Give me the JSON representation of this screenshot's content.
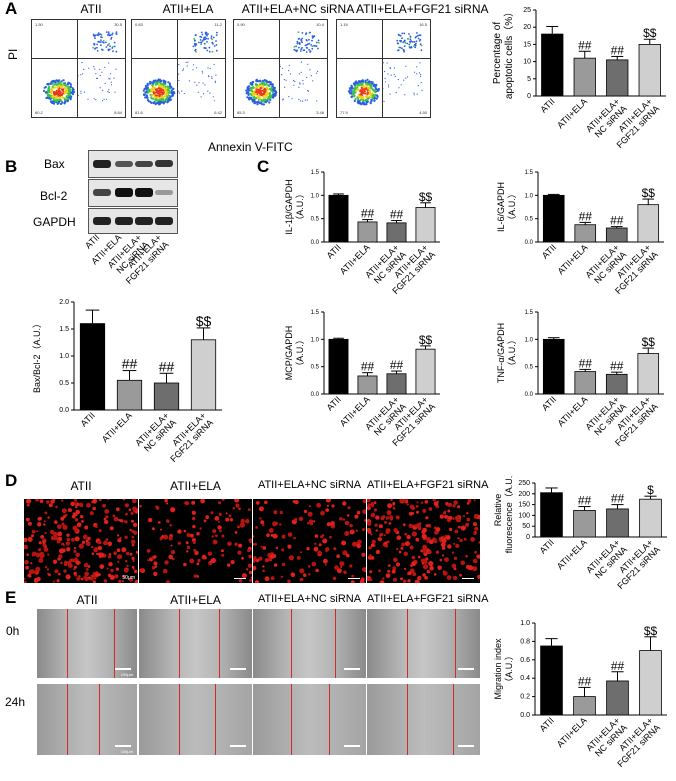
{
  "panels": {
    "a": "A",
    "b": "B",
    "c": "C",
    "d": "D",
    "e": "E"
  },
  "flow": {
    "titles": [
      "ATII",
      "ATII+ELA",
      "ATII+ELA+NC siRNA",
      "ATII+ELA+FGF21 siRNA"
    ],
    "y_axis": "PI",
    "x_axis": "Annexin V-FITC",
    "quadrants": [
      {
        "ul": "1.50",
        "ur": "30.5",
        "ll": "60.2",
        "lr": "8.84"
      },
      {
        "ul": "0.83",
        "ur": "11.2",
        "ll": "81.6",
        "lr": "6.42"
      },
      {
        "ul": "0.90",
        "ur": "10.4",
        "ll": "85.3",
        "lr": "3.46"
      },
      {
        "ul": "1.19",
        "ur": "16.5",
        "ll": "77.9",
        "lr": "4.50"
      }
    ]
  },
  "western": {
    "bands": [
      "Bax",
      "Bcl-2",
      "GAPDH"
    ]
  },
  "chart_data": [
    {
      "id": "apoptosis",
      "type": "bar",
      "categories": [
        "ATII",
        "ATII+ELA",
        "ATII+ELA+ NC siRNA",
        "ATII+ELA+ FGF21 siRNA"
      ],
      "values": [
        18,
        11,
        10.5,
        15
      ],
      "errors": [
        2.2,
        2,
        1,
        1.5
      ],
      "sig": [
        "",
        "##",
        "##",
        "$$"
      ],
      "ylabel": "Percentage of apoptotic cells（%）",
      "ylim": [
        0,
        25
      ],
      "ticks": [
        0,
        5,
        10,
        15,
        20,
        25
      ],
      "colors": [
        "#000000",
        "#9a9a9a",
        "#6e6e6e",
        "#cfcfcf"
      ]
    },
    {
      "id": "bax",
      "type": "bar",
      "categories": [
        "ATII",
        "ATII+ELA",
        "ATII+ELA+ NC siRNA",
        "ATII+ELA+ FGF21 siRNA"
      ],
      "values": [
        1.6,
        0.55,
        0.5,
        1.3
      ],
      "errors": [
        0.25,
        0.18,
        0.18,
        0.22
      ],
      "sig": [
        "",
        "##",
        "##",
        "$$"
      ],
      "ylabel": "Bax/Bcl-2（A.U.）",
      "ylim": [
        0,
        2.0
      ],
      "ticks": [
        0.0,
        0.5,
        1.0,
        1.5,
        2.0
      ],
      "colors": [
        "#000000",
        "#9a9a9a",
        "#6e6e6e",
        "#cfcfcf"
      ]
    },
    {
      "id": "il1b",
      "type": "bar",
      "categories": [
        "ATII",
        "ATII+ELA",
        "ATII+ELA+ NC siRNA",
        "ATII+ELA+ FGF21 siRNA"
      ],
      "values": [
        1.0,
        0.43,
        0.41,
        0.74
      ],
      "errors": [
        0.03,
        0.05,
        0.05,
        0.1
      ],
      "sig": [
        "",
        "##",
        "##",
        "$$"
      ],
      "ylabel": "IL-1β/GAPDH",
      "ylabel2": "（A.U.）",
      "ylim": [
        0,
        1.5
      ],
      "ticks": [
        0.0,
        0.5,
        1.0,
        1.5
      ],
      "colors": [
        "#000000",
        "#9a9a9a",
        "#6e6e6e",
        "#cfcfcf"
      ]
    },
    {
      "id": "il6",
      "type": "bar",
      "categories": [
        "ATII",
        "ATII+ELA",
        "ATII+ELA+ NC siRNA",
        "ATII+ELA+ FGF21 siRNA"
      ],
      "values": [
        1.0,
        0.37,
        0.3,
        0.8
      ],
      "errors": [
        0.02,
        0.05,
        0.03,
        0.12
      ],
      "sig": [
        "",
        "##",
        "##",
        "$$"
      ],
      "ylabel": "IL-6/GAPDH",
      "ylabel2": "（A.U.）",
      "ylim": [
        0,
        1.5
      ],
      "ticks": [
        0.0,
        0.5,
        1.0,
        1.5
      ],
      "colors": [
        "#000000",
        "#9a9a9a",
        "#6e6e6e",
        "#cfcfcf"
      ]
    },
    {
      "id": "mcp",
      "type": "bar",
      "categories": [
        "ATII",
        "ATII+ELA",
        "ATII+ELA+ NC siRNA",
        "ATII+ELA+ FGF21 siRNA"
      ],
      "values": [
        1.0,
        0.33,
        0.37,
        0.82
      ],
      "errors": [
        0.02,
        0.06,
        0.05,
        0.06
      ],
      "sig": [
        "",
        "##",
        "##",
        "$$"
      ],
      "ylabel": "MCP/GAPDH",
      "ylabel2": "（A.U.）",
      "ylim": [
        0,
        1.5
      ],
      "ticks": [
        0.0,
        0.5,
        1.0,
        1.5
      ],
      "colors": [
        "#000000",
        "#9a9a9a",
        "#6e6e6e",
        "#cfcfcf"
      ]
    },
    {
      "id": "tnfa",
      "type": "bar",
      "categories": [
        "ATII",
        "ATII+ELA",
        "ATII+ELA+ NC siRNA",
        "ATII+ELA+ FGF21 siRNA"
      ],
      "values": [
        1.0,
        0.41,
        0.36,
        0.74
      ],
      "errors": [
        0.03,
        0.04,
        0.04,
        0.1
      ],
      "sig": [
        "",
        "##",
        "##",
        "$$"
      ],
      "ylabel": "TNF-α/GAPDH",
      "ylabel2": "（A.U.）",
      "ylim": [
        0,
        1.5
      ],
      "ticks": [
        0.0,
        0.5,
        1.0,
        1.5
      ],
      "colors": [
        "#000000",
        "#9a9a9a",
        "#6e6e6e",
        "#cfcfcf"
      ]
    },
    {
      "id": "fluor",
      "type": "bar",
      "categories": [
        "ATII",
        "ATII+ELA",
        "ATII+ELA+ NC siRNA",
        "ATII+ELA+ FGF21 siRNA"
      ],
      "values": [
        205,
        123,
        130,
        175
      ],
      "errors": [
        22,
        18,
        20,
        14
      ],
      "sig": [
        "",
        "##",
        "##",
        "$"
      ],
      "ylabel": "Relative",
      "ylabel2": "fluorescence（A.U.）",
      "ylim": [
        0,
        250
      ],
      "ticks": [
        0,
        50,
        100,
        150,
        200,
        250
      ],
      "colors": [
        "#000000",
        "#9a9a9a",
        "#6e6e6e",
        "#cfcfcf"
      ]
    },
    {
      "id": "migration",
      "type": "bar",
      "categories": [
        "ATII",
        "ATII+ELA",
        "ATII+ELA+ NC siRNA",
        "ATII+ELA+ FGF21 siRNA"
      ],
      "values": [
        0.75,
        0.2,
        0.37,
        0.7
      ],
      "errors": [
        0.08,
        0.1,
        0.1,
        0.15
      ],
      "sig": [
        "",
        "##",
        "##",
        "$$"
      ],
      "ylabel": "Migration index",
      "ylabel2": "（A.U.）",
      "ylim": [
        0,
        1.0
      ],
      "ticks": [
        0.0,
        0.2,
        0.4,
        0.6,
        0.8,
        1.0
      ],
      "colors": [
        "#000000",
        "#9a9a9a",
        "#6e6e6e",
        "#cfcfcf"
      ]
    }
  ],
  "fluor_titles": [
    "ATII",
    "ATII+ELA",
    "ATII+ELA+NC siRNA",
    "ATII+ELA+FGF21 siRNA"
  ],
  "fluor_scale": "50μm",
  "migration_titles": [
    "ATII",
    "ATII+ELA",
    "ATII+ELA+NC siRNA",
    "ATII+ELA+FGF21 siRNA"
  ],
  "migration_rows": [
    "0h",
    "24h"
  ],
  "migration_scale": "100μm"
}
